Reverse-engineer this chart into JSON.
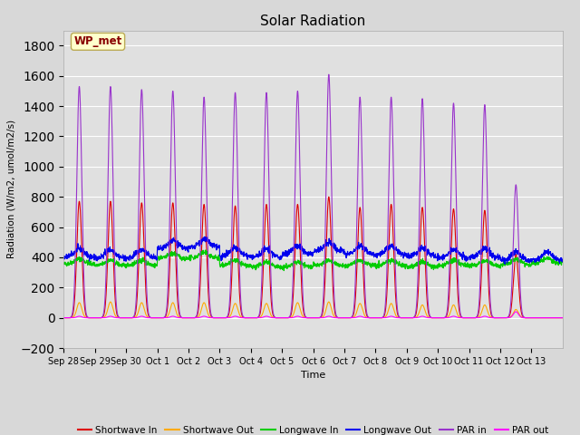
{
  "title": "Solar Radiation",
  "xlabel": "Time",
  "ylabel": "Radiation (W/m2, umol/m2/s)",
  "ylim": [
    -200,
    1900
  ],
  "yticks": [
    -200,
    0,
    200,
    400,
    600,
    800,
    1000,
    1200,
    1400,
    1600,
    1800
  ],
  "n_days": 16,
  "colors": {
    "shortwave_in": "#dd0000",
    "shortwave_out": "#ffaa00",
    "longwave_in": "#00cc00",
    "longwave_out": "#0000ee",
    "par_in": "#9933cc",
    "par_out": "#ff00ff"
  },
  "annotation_text": "WP_met",
  "annotation_color": "#880000",
  "annotation_bg": "#ffffcc",
  "background_color": "#e0e0e0",
  "grid_color": "#ffffff",
  "xtick_labels": [
    "Sep 28",
    "Sep 29",
    "Sep 30",
    "Oct 1",
    "Oct 2",
    "Oct 3",
    "Oct 4",
    "Oct 5",
    "Oct 6",
    "Oct 7",
    "Oct 8",
    "Oct 9",
    "Oct 10",
    "Oct 11",
    "Oct 12",
    "Oct 13"
  ],
  "legend_entries": [
    "Shortwave In",
    "Shortwave Out",
    "Longwave In",
    "Longwave Out",
    "PAR in",
    "PAR out"
  ],
  "sw_in_peaks": [
    770,
    770,
    760,
    760,
    750,
    740,
    750,
    750,
    800,
    730,
    750,
    730,
    720,
    710,
    420,
    0
  ],
  "sw_out_peaks": [
    100,
    105,
    100,
    100,
    100,
    95,
    95,
    100,
    105,
    95,
    95,
    85,
    85,
    85,
    55,
    0
  ],
  "par_in_peaks": [
    1530,
    1530,
    1510,
    1500,
    1460,
    1490,
    1490,
    1500,
    1610,
    1460,
    1460,
    1450,
    1420,
    1410,
    880,
    0
  ],
  "par_out_peaks": [
    10,
    10,
    10,
    10,
    10,
    10,
    10,
    10,
    10,
    10,
    10,
    10,
    10,
    10,
    40,
    0
  ],
  "lw_base_in": [
    355,
    345,
    345,
    390,
    395,
    345,
    335,
    335,
    345,
    345,
    345,
    335,
    345,
    345,
    350,
    360
  ],
  "lw_base_out": [
    400,
    395,
    395,
    455,
    465,
    405,
    400,
    420,
    440,
    420,
    420,
    405,
    395,
    400,
    380,
    380
  ]
}
